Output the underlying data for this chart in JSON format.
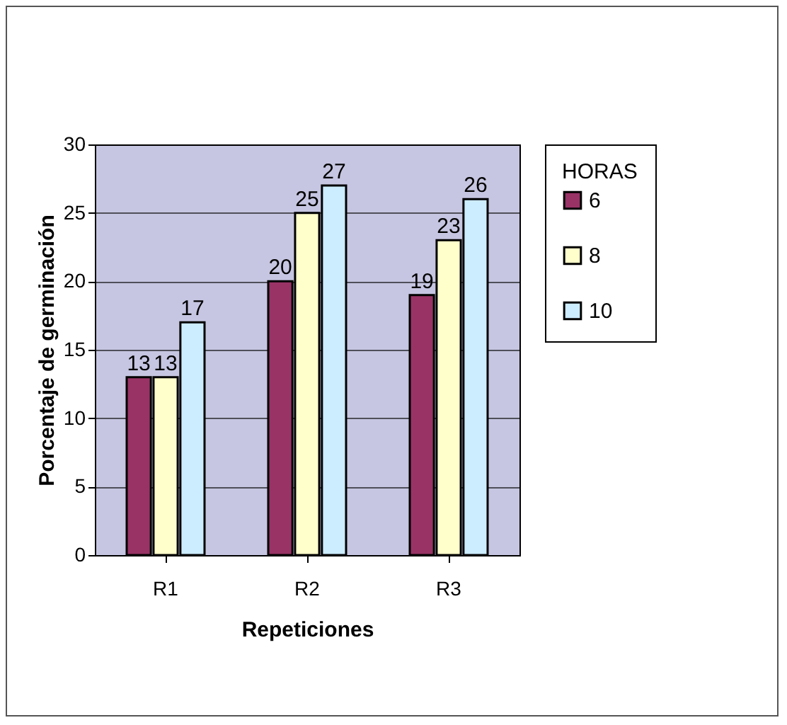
{
  "chart_data": {
    "type": "bar",
    "xlabel": "Repeticiones",
    "ylabel": "Porcentaje de germinación",
    "legend_title": "HORAS",
    "categories": [
      "R1",
      "R2",
      "R3"
    ],
    "series": [
      {
        "name": "6",
        "color": "#993366",
        "values": [
          13,
          20,
          19
        ]
      },
      {
        "name": "8",
        "color": "#ffffcc",
        "values": [
          13,
          25,
          23
        ]
      },
      {
        "name": "10",
        "color": "#ccecff",
        "values": [
          17,
          27,
          26
        ]
      }
    ],
    "ylim": [
      0,
      30
    ],
    "yticks": [
      0,
      5,
      10,
      15,
      20,
      25,
      30
    ],
    "grid": "y",
    "legend": "right",
    "data_labels": true
  }
}
